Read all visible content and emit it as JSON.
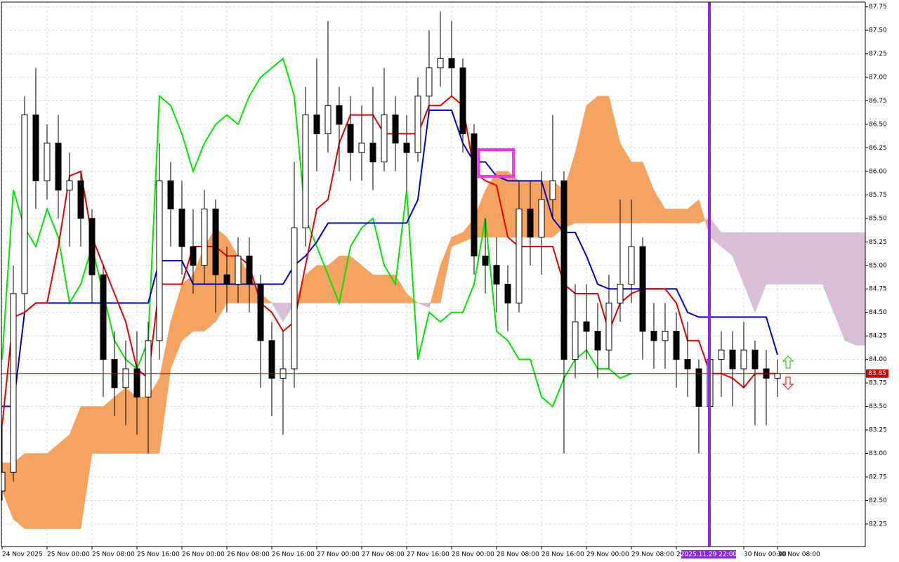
{
  "chart_data": {
    "type": "candlestick",
    "categories": [
      "24 Nov 2025",
      null,
      null,
      null,
      "25 Nov 00:00",
      null,
      null,
      null,
      "25 Nov 08:00",
      null,
      null,
      null,
      "25 Nov 16:00",
      null,
      null,
      null,
      "26 Nov 00:00",
      null,
      null,
      null,
      "26 Nov 08:00",
      null,
      null,
      null,
      "26 Nov 16:00",
      null,
      null,
      null,
      "27 Nov 00:00",
      null,
      null,
      null,
      "27 Nov 08:00",
      null,
      null,
      null,
      "27 Nov 16:00",
      null,
      null,
      null,
      "28 Nov 00:00",
      null,
      null,
      null,
      "28 Nov 08:00",
      null,
      null,
      null,
      "28 Nov 16:00",
      null,
      null,
      null,
      "29 Nov 00:00",
      null,
      null,
      null,
      "29 Nov 08:00",
      null,
      null,
      null,
      "29 Nov 16:00",
      null,
      null,
      null,
      null,
      null,
      "30 Nov 00:00",
      null,
      null,
      "30 Nov 08:00"
    ],
    "open": [
      82.6,
      82.8,
      84.7,
      86.6,
      85.9,
      86.3,
      85.8,
      85.9,
      85.5,
      84.9,
      84.0,
      83.7,
      83.9,
      83.6,
      84.2,
      85.9,
      85.6,
      85.2,
      85.0,
      85.6,
      84.9,
      84.8,
      85.1,
      84.8,
      84.2,
      83.8,
      83.9,
      85.4,
      86.6,
      86.4,
      86.7,
      86.5,
      86.2,
      86.3,
      86.1,
      86.6,
      86.3,
      86.2,
      86.8,
      87.1,
      87.2,
      87.1,
      86.4,
      85.1,
      85.0,
      84.8,
      84.6,
      85.6,
      85.3,
      85.7,
      85.9,
      84.0,
      84.4,
      84.3,
      84.1,
      84.6,
      84.8,
      85.2,
      84.3,
      84.2,
      84.3,
      84.0,
      83.9,
      83.5,
      84.0,
      84.1,
      83.9,
      84.1,
      83.9,
      83.8
    ],
    "high": [
      83.3,
      85.0,
      86.8,
      87.1,
      86.5,
      86.6,
      86.2,
      86.0,
      85.6,
      85.0,
      84.3,
      84.2,
      84.3,
      84.4,
      86.3,
      86.1,
      85.9,
      85.6,
      85.8,
      85.7,
      85.2,
      85.3,
      85.3,
      84.9,
      84.4,
      84.3,
      86.1,
      86.9,
      87.2,
      87.6,
      86.9,
      86.8,
      86.7,
      86.9,
      87.1,
      86.8,
      86.6,
      87.0,
      87.5,
      87.7,
      87.6,
      87.2,
      86.5,
      85.5,
      85.3,
      85.0,
      85.9,
      85.9,
      86.0,
      86.6,
      86.0,
      84.8,
      84.8,
      84.6,
      84.9,
      85.7,
      85.7,
      85.3,
      84.6,
      84.6,
      84.5,
      84.4,
      84.0,
      84.2,
      84.3,
      84.3,
      84.4,
      84.2,
      84.1,
      84.0
    ],
    "low": [
      82.5,
      82.7,
      84.5,
      85.6,
      85.7,
      85.5,
      85.2,
      85.2,
      84.6,
      83.6,
      83.4,
      83.3,
      83.2,
      83.0,
      84.0,
      85.2,
      84.9,
      84.7,
      84.8,
      84.5,
      84.5,
      84.6,
      84.5,
      83.7,
      83.4,
      83.2,
      83.7,
      85.2,
      86.0,
      86.2,
      86.0,
      85.9,
      85.9,
      85.8,
      86.0,
      86.0,
      85.8,
      86.1,
      86.6,
      86.9,
      86.8,
      86.2,
      84.9,
      84.7,
      84.5,
      84.3,
      84.5,
      85.0,
      84.9,
      85.5,
      83.0,
      83.8,
      84.0,
      83.8,
      83.9,
      84.4,
      84.6,
      84.0,
      83.9,
      83.9,
      83.7,
      83.6,
      83.0,
      83.2,
      83.6,
      83.5,
      83.7,
      83.3,
      83.3,
      83.6
    ],
    "close": [
      82.8,
      84.7,
      86.6,
      85.9,
      86.3,
      85.8,
      85.9,
      85.5,
      84.9,
      84.0,
      83.7,
      83.9,
      83.6,
      84.2,
      85.9,
      85.6,
      85.2,
      85.0,
      85.6,
      84.9,
      84.8,
      85.1,
      84.8,
      84.2,
      83.8,
      83.9,
      85.4,
      86.6,
      86.4,
      86.7,
      86.5,
      86.2,
      86.3,
      86.1,
      86.6,
      86.3,
      86.2,
      86.8,
      87.1,
      87.2,
      87.1,
      86.4,
      85.1,
      85.0,
      84.8,
      84.6,
      85.6,
      85.3,
      85.7,
      85.9,
      84.0,
      84.4,
      84.3,
      84.1,
      84.6,
      84.8,
      85.2,
      84.3,
      84.2,
      84.3,
      84.0,
      83.9,
      83.5,
      84.0,
      84.1,
      83.9,
      84.1,
      83.9,
      83.8,
      83.85
    ],
    "series": [
      {
        "color": "#00e600",
        "values": [
          84.0,
          85.8,
          85.4,
          85.2,
          85.6,
          85.3,
          84.6,
          84.8,
          85.2,
          84.7,
          84.2,
          84.0,
          83.9,
          84.2,
          86.8,
          86.7,
          86.4,
          86.0,
          86.3,
          86.5,
          86.6,
          86.5,
          86.8,
          87.0,
          87.1,
          87.2,
          86.8,
          85.5,
          85.2,
          84.9,
          84.6,
          85.2,
          85.4,
          85.5,
          85.0,
          84.8,
          85.8,
          84.0,
          84.5,
          84.4,
          84.5,
          84.5,
          84.8,
          85.5,
          84.3,
          84.2,
          84.0,
          84.0,
          83.6,
          83.5,
          83.8,
          84.0,
          84.1,
          83.9,
          83.9,
          83.8,
          83.85,
          null,
          null,
          null,
          null,
          null,
          null,
          null,
          null,
          null,
          null,
          null,
          null,
          null
        ]
      },
      {
        "color": "#0000cc",
        "values": [
          83.5,
          83.5,
          84.5,
          84.6,
          84.6,
          84.6,
          84.6,
          84.6,
          84.6,
          84.6,
          84.6,
          84.6,
          84.6,
          84.6,
          85.05,
          85.05,
          85.05,
          84.8,
          84.8,
          84.8,
          84.8,
          84.8,
          84.8,
          84.8,
          84.8,
          84.8,
          85.0,
          85.1,
          85.25,
          85.45,
          85.45,
          85.45,
          85.45,
          85.45,
          85.45,
          85.45,
          85.45,
          85.7,
          86.65,
          86.65,
          86.65,
          86.3,
          86.1,
          86.1,
          85.95,
          85.9,
          85.9,
          85.9,
          85.9,
          85.5,
          85.35,
          85.35,
          85.1,
          84.8,
          84.75,
          84.75,
          84.75,
          84.75,
          84.75,
          84.75,
          84.75,
          84.5,
          84.45,
          84.45,
          84.45,
          84.45,
          84.45,
          84.45,
          84.45,
          84.05
        ]
      },
      {
        "color": "#e60000",
        "values": [
          83.3,
          84.45,
          84.5,
          84.6,
          84.6,
          85.2,
          85.95,
          86.0,
          85.3,
          85.0,
          84.7,
          84.4,
          83.9,
          83.8,
          84.8,
          84.8,
          84.8,
          85.2,
          85.2,
          85.2,
          85.1,
          85.1,
          85.0,
          84.6,
          84.5,
          84.3,
          84.4,
          85.0,
          85.6,
          85.7,
          86.3,
          86.6,
          86.6,
          86.6,
          86.4,
          86.4,
          86.4,
          86.4,
          86.7,
          86.7,
          86.8,
          86.7,
          86.0,
          85.9,
          85.85,
          85.3,
          85.2,
          85.2,
          85.2,
          85.2,
          84.8,
          84.7,
          84.7,
          84.7,
          84.3,
          84.6,
          84.7,
          84.75,
          84.75,
          84.75,
          84.6,
          84.2,
          84.2,
          83.85,
          83.85,
          83.8,
          83.7,
          83.85,
          83.85,
          83.85
        ]
      }
    ],
    "cloud": {
      "colors": [
        "#f4a460",
        "#d8bfd8"
      ],
      "span_a": [
        82.9,
        82.9,
        83.0,
        83.0,
        83.0,
        83.1,
        83.2,
        83.5,
        83.5,
        83.5,
        83.6,
        83.7,
        83.6,
        83.6,
        83.8,
        84.4,
        84.8,
        84.9,
        85.2,
        85.4,
        85.3,
        85.1,
        84.9,
        84.7,
        84.6,
        84.4,
        84.6,
        84.9,
        85.0,
        85.0,
        85.1,
        85.1,
        85.0,
        84.9,
        84.9,
        84.9,
        84.7,
        84.6,
        84.55,
        85.0,
        85.3,
        85.35,
        85.5,
        85.8,
        86.0,
        86.0,
        85.9,
        85.9,
        85.9,
        85.9,
        85.8,
        86.2,
        86.7,
        86.8,
        86.8,
        86.3,
        86.1,
        86.1,
        85.8,
        85.6,
        85.6,
        85.6,
        85.7,
        85.3,
        85.2,
        85.1,
        84.8,
        84.5,
        84.8,
        84.8,
        84.8,
        84.8,
        84.8,
        84.8,
        84.5,
        84.2,
        84.15,
        84.15
      ],
      "span_b": [
        82.6,
        82.3,
        82.2,
        82.2,
        82.2,
        82.2,
        82.2,
        82.2,
        83.0,
        83.0,
        83.0,
        83.0,
        83.0,
        83.0,
        83.0,
        83.9,
        84.2,
        84.3,
        84.3,
        84.4,
        84.6,
        84.6,
        84.6,
        84.6,
        84.6,
        84.6,
        84.6,
        84.6,
        84.6,
        84.6,
        84.6,
        84.6,
        84.6,
        84.6,
        84.6,
        84.6,
        84.6,
        84.6,
        84.6,
        84.6,
        85.2,
        85.25,
        85.3,
        85.3,
        85.3,
        85.3,
        85.3,
        85.3,
        85.3,
        85.3,
        85.4,
        85.45,
        85.45,
        85.45,
        85.45,
        85.45,
        85.45,
        85.45,
        85.45,
        85.45,
        85.45,
        85.45,
        85.45,
        85.5,
        85.35,
        85.35,
        85.35,
        85.35,
        85.35,
        85.35,
        85.35,
        85.35,
        85.35,
        85.35,
        85.35,
        85.35,
        85.35,
        85.35
      ]
    },
    "current_price": 83.85,
    "current_price_color": "#cc0000",
    "marker_label": "2025.11.29 22:00",
    "marker_color": "#8a2be2",
    "ylim": [
      82.01,
      87.8
    ],
    "yticks": [
      82.25,
      {
        "value": 82.5,
        "label": "82.50"
      },
      82.75,
      {
        "value": 83,
        "label": "83.00"
      },
      83.25,
      {
        "value": 83.5,
        "label": "83.50"
      },
      83.75,
      {
        "value": 84,
        "label": "84.00"
      },
      84.25,
      {
        "value": 84.5,
        "label": "84.50"
      },
      84.75,
      {
        "value": 85,
        "label": "85.00"
      },
      85.25,
      {
        "value": 85.5,
        "label": "85.50"
      },
      85.75,
      {
        "value": 86,
        "label": "86.00"
      },
      86.25,
      {
        "value": 86.5,
        "label": "86.50"
      },
      86.75,
      {
        "value": 87,
        "label": "87.00"
      },
      87.25,
      {
        "value": 87.5,
        "label": "87.50"
      },
      87.75
    ],
    "grid": true
  }
}
